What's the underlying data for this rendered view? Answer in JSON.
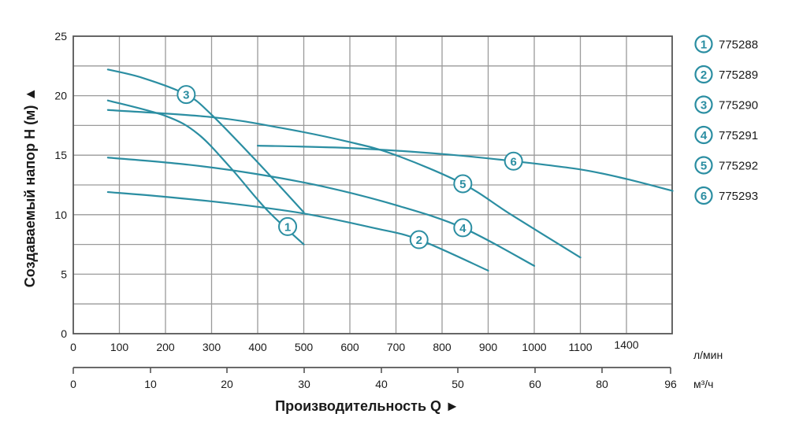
{
  "chart_data": {
    "type": "line",
    "title": "",
    "ylabel": "Создаваемый напор H (м) ▲",
    "xlabel": "Производительность Q ►",
    "y_unit": "м",
    "ylim": [
      0,
      25
    ],
    "yticks": [
      0,
      5,
      10,
      15,
      20,
      25
    ],
    "grid": true,
    "legend_position": "right",
    "color": "#2b8ea2",
    "x_axis_lpm": {
      "unit": "л/мин",
      "tick_labels": [
        "0",
        "100",
        "200",
        "300",
        "400",
        "500",
        "600",
        "700",
        "800",
        "900",
        "1000",
        "1100",
        "1400"
      ],
      "note": "gridlines every 100 l/min; last label reads 1400"
    },
    "x_axis_m3h": {
      "unit": "м³/ч",
      "tick_labels": [
        "0",
        "10",
        "20",
        "30",
        "40",
        "50",
        "60",
        "80",
        "96"
      ]
    },
    "series": [
      {
        "id": 1,
        "name": "775288",
        "x_lpm": [
          75,
          200,
          270,
          340,
          420,
          500
        ],
        "y_m": [
          19.6,
          18.3,
          16.8,
          14.0,
          10.4,
          7.5
        ]
      },
      {
        "id": 2,
        "name": "775289",
        "x_lpm": [
          75,
          200,
          350,
          500,
          650,
          750,
          900
        ],
        "y_m": [
          11.9,
          11.5,
          10.9,
          10.1,
          8.9,
          7.9,
          5.3
        ]
      },
      {
        "id": 3,
        "name": "775290",
        "x_lpm": [
          75,
          150,
          245,
          300,
          400,
          500
        ],
        "y_m": [
          22.2,
          21.5,
          20.1,
          18.4,
          14.4,
          10.2
        ]
      },
      {
        "id": 4,
        "name": "775291",
        "x_lpm": [
          75,
          250,
          400,
          550,
          700,
          845,
          1000
        ],
        "y_m": [
          14.8,
          14.2,
          13.4,
          12.3,
          10.8,
          8.9,
          5.7
        ]
      },
      {
        "id": 5,
        "name": "775292",
        "x_lpm": [
          75,
          300,
          450,
          600,
          700,
          845,
          950,
          1100
        ],
        "y_m": [
          18.8,
          18.2,
          17.3,
          16.1,
          15.0,
          12.6,
          10.0,
          6.4
        ]
      },
      {
        "id": 6,
        "name": "775293",
        "x_lpm": [
          400,
          600,
          800,
          955,
          1100,
          1200,
          1300
        ],
        "y_m": [
          15.8,
          15.6,
          15.1,
          14.5,
          13.8,
          13.0,
          12.0
        ]
      }
    ],
    "markers": [
      {
        "id": 1,
        "label": "1",
        "x_lpm": 465,
        "y_m": 9.0
      },
      {
        "id": 2,
        "label": "2",
        "x_lpm": 750,
        "y_m": 7.9
      },
      {
        "id": 3,
        "label": "3",
        "x_lpm": 245,
        "y_m": 20.1
      },
      {
        "id": 4,
        "label": "4",
        "x_lpm": 845,
        "y_m": 8.9
      },
      {
        "id": 5,
        "label": "5",
        "x_lpm": 845,
        "y_m": 12.6
      },
      {
        "id": 6,
        "label": "6",
        "x_lpm": 955,
        "y_m": 14.5
      }
    ]
  },
  "legend": {
    "items": [
      {
        "num": "1",
        "code": "775288"
      },
      {
        "num": "2",
        "code": "775289"
      },
      {
        "num": "3",
        "code": "775290"
      },
      {
        "num": "4",
        "code": "775291"
      },
      {
        "num": "5",
        "code": "775292"
      },
      {
        "num": "6",
        "code": "775293"
      }
    ]
  },
  "axes": {
    "y_title": "Создаваемый напор H (м) ▲",
    "x_title": "Производительность Q ►",
    "unit_lpm": "л/мин",
    "unit_m3h": "м³/ч"
  }
}
